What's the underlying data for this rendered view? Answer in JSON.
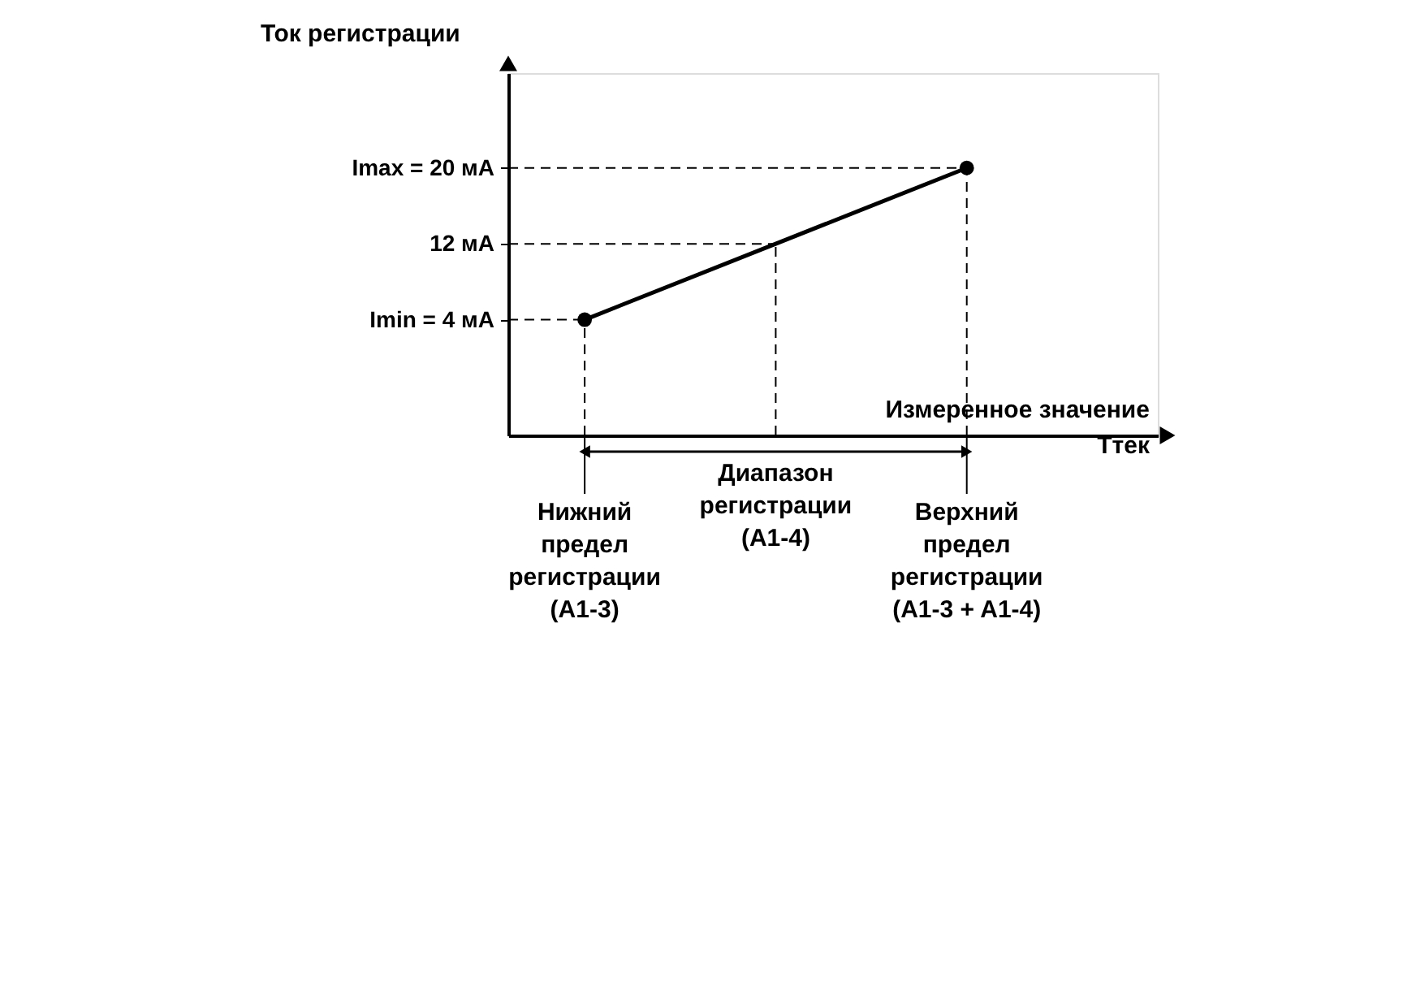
{
  "chart_data": {
    "type": "line",
    "categories": [
      "Нижний\nпредел\nрегистрации\n(A1-3)",
      "Диапазон\nрегистрации\n(A1-4)",
      "Верхний\nпредел\nрегистрации\n(A1-3 + A1-4)"
    ],
    "series": [
      {
        "color": "#000000",
        "values": [
          4,
          12,
          20
        ],
        "line_style": "solid"
      },
      {
        "type": "scatter",
        "color": "#000000",
        "values": [
          4,
          null,
          20
        ],
        "marker": "circle"
      }
    ],
    "ylabel": "Ток регистрации",
    "xlabel": "Измеренное значение\nTтек",
    "ylim": [
      -8.2,
      30
    ],
    "yticks": [
      {
        "value": 4,
        "label": "Imin = 4 мА"
      },
      {
        "value": 12,
        "label": "12 мА"
      },
      {
        "value": 20,
        "label": "Imax = 20 мА"
      }
    ],
    "ref_lines": [
      {
        "axis": "y",
        "value": 4,
        "line_style": "dashed"
      },
      {
        "axis": "y",
        "value": 12,
        "line_style": "dashed"
      },
      {
        "axis": "y",
        "value": 20,
        "line_style": "dashed"
      },
      {
        "axis": "x",
        "value": "Нижний\nпредел\nрегистрации\n(A1-3)",
        "line_style": "dashed"
      },
      {
        "axis": "x",
        "value": "Диапазон\nрегистрации\n(A1-4)",
        "line_style": "dashed"
      },
      {
        "axis": "x",
        "value": "Верхний\nпредел\nрегистрации\n(A1-3 + A1-4)",
        "line_style": "dashed"
      }
    ],
    "grid": false
  }
}
